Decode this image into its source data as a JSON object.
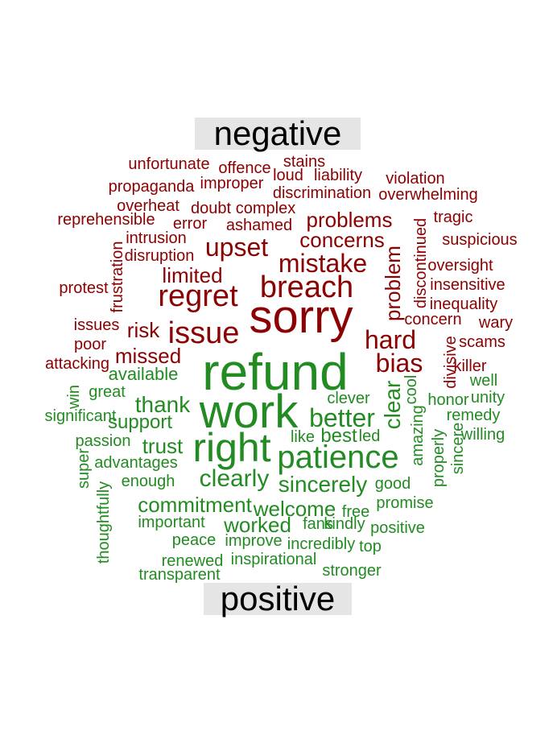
{
  "colors": {
    "negative": "#8b0000",
    "positive": "#228b22",
    "header_bg": "#e5e5e5"
  },
  "headers": {
    "negative": "negative",
    "positive": "positive"
  },
  "negative_words": [
    "unfortunate",
    "offence",
    "stains",
    "loud",
    "liability",
    "violation",
    "propaganda",
    "improper",
    "discrimination",
    "overwhelming",
    "overheat",
    "doubt",
    "complex",
    "reprehensible",
    "error",
    "ashamed",
    "problems",
    "tragic",
    "discontinued",
    "intrusion",
    "upset",
    "concerns",
    "suspicious",
    "disruption",
    "mistake",
    "oversight",
    "limited",
    "problem",
    "insensitive",
    "protest",
    "frustration",
    "regret",
    "breach",
    "inequality",
    "issues",
    "risk",
    "sorry",
    "concern",
    "wary",
    "issue",
    "poor",
    "hard",
    "scams",
    "divisive",
    "missed",
    "bias",
    "killer",
    "attacking"
  ],
  "positive_words": [
    "refund",
    "available",
    "well",
    "win",
    "great",
    "cool",
    "unity",
    "clever",
    "thank",
    "honor",
    "work",
    "clear",
    "remedy",
    "significant",
    "support",
    "better",
    "amazing",
    "willing",
    "passion",
    "trust",
    "best",
    "like",
    "led",
    "properly",
    "sincere",
    "right",
    "patience",
    "super",
    "advantages",
    "enough",
    "clearly",
    "sincerely",
    "good",
    "thoughtfully",
    "commitment",
    "welcome",
    "promise",
    "free",
    "important",
    "worked",
    "fans",
    "kindly",
    "positive",
    "peace",
    "improve",
    "incredibly",
    "top",
    "renewed",
    "inspirational",
    "transparent",
    "stronger"
  ]
}
